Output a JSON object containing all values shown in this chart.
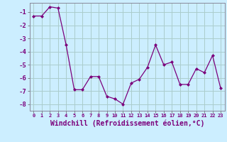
{
  "x": [
    0,
    1,
    2,
    3,
    4,
    5,
    6,
    7,
    8,
    9,
    10,
    11,
    12,
    13,
    14,
    15,
    16,
    17,
    18,
    19,
    20,
    21,
    22,
    23
  ],
  "y": [
    -1.3,
    -1.3,
    -0.6,
    -0.7,
    -3.5,
    -6.9,
    -6.9,
    -5.9,
    -5.9,
    -7.4,
    -7.6,
    -8.0,
    -6.4,
    -6.1,
    -5.2,
    -3.5,
    -5.0,
    -4.8,
    -6.5,
    -6.5,
    -5.3,
    -5.6,
    -4.3,
    -6.8
  ],
  "line_color": "#7b007b",
  "marker": "D",
  "marker_size": 2.0,
  "background_color": "#cceeff",
  "grid_color": "#aacccc",
  "xlabel": "Windchill (Refroidissement éolien,°C)",
  "xlabel_fontsize": 7.0,
  "ylim": [
    -8.5,
    -0.3
  ],
  "yticks": [
    -8,
    -7,
    -6,
    -5,
    -4,
    -3,
    -2,
    -1
  ],
  "xlim": [
    -0.5,
    23.5
  ],
  "xticks": [
    0,
    1,
    2,
    3,
    4,
    5,
    6,
    7,
    8,
    9,
    10,
    11,
    12,
    13,
    14,
    15,
    16,
    17,
    18,
    19,
    20,
    21,
    22,
    23
  ]
}
